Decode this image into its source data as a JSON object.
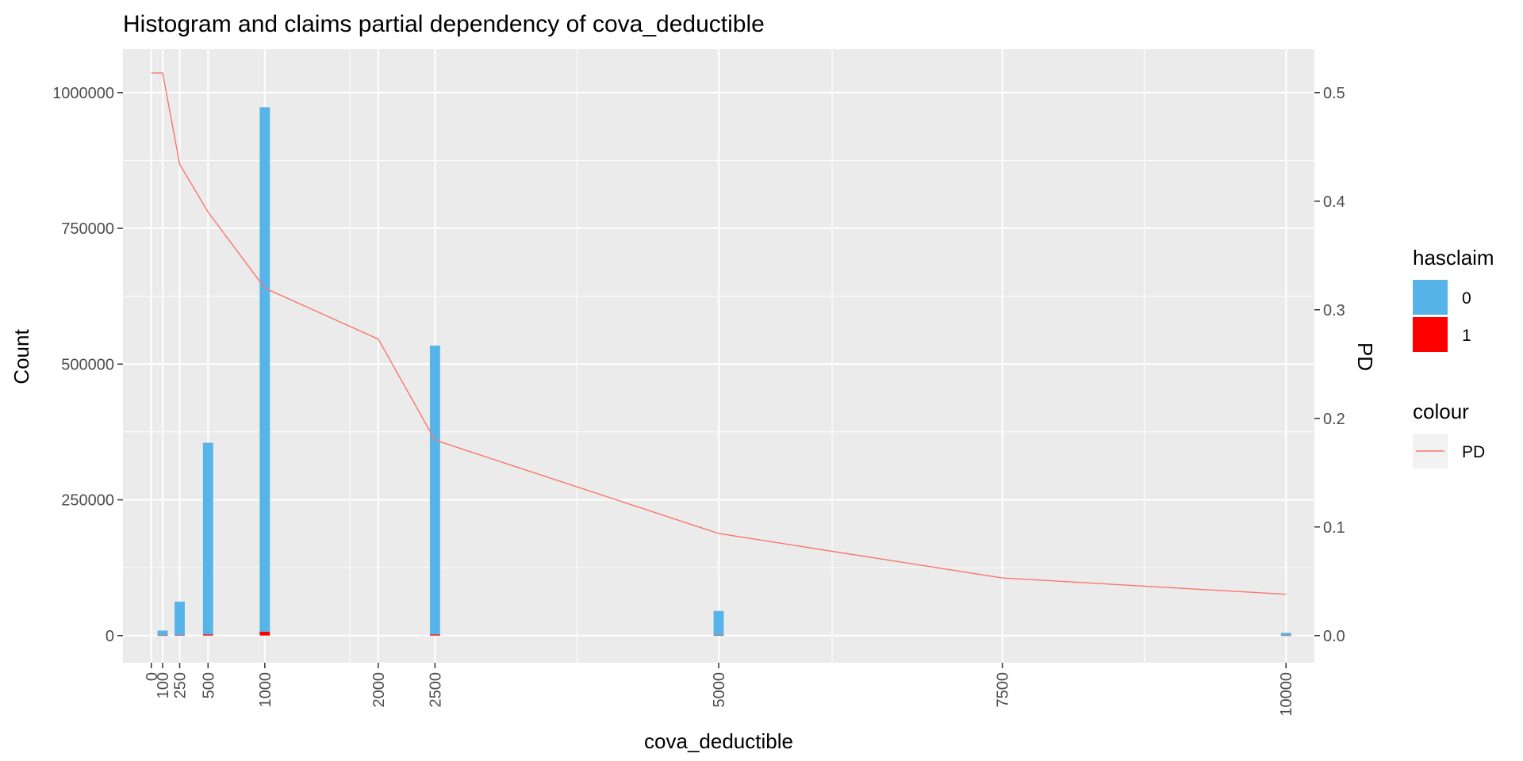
{
  "chart_data": {
    "type": "bar",
    "title": "Histogram and claims partial dependency of cova_deductible",
    "xlabel": "cova_deductible",
    "ylabel": "Count",
    "y2label": "PD",
    "xlim": [
      -250,
      10250
    ],
    "ylim": [
      -50000,
      1080000
    ],
    "y2lim": [
      -0.025,
      0.54
    ],
    "x_ticks": [
      0,
      100,
      250,
      500,
      1000,
      2000,
      2500,
      5000,
      7500,
      10000
    ],
    "x_ticks_display": [
      "0",
      "100",
      "250",
      "500",
      "1000",
      "2000",
      "2500",
      "5000",
      "7500",
      "10000"
    ],
    "x_minor_gridlines": [
      1750,
      3750,
      6000,
      8750
    ],
    "y_ticks": [
      0,
      250000,
      500000,
      750000,
      1000000
    ],
    "y_ticks_display": [
      "0",
      "250000",
      "500000",
      "750000",
      "1000000"
    ],
    "y2_ticks": [
      0.0,
      0.1,
      0.2,
      0.3,
      0.4,
      0.5
    ],
    "y2_ticks_display": [
      "0.0",
      "0.1",
      "0.2",
      "0.3",
      "0.4",
      "0.5"
    ],
    "grid": true,
    "legend_position": "right",
    "bar_width": 90,
    "bars": {
      "x": [
        100,
        250,
        500,
        1000,
        2500,
        5000,
        10000
      ],
      "series": [
        {
          "name": "0",
          "color": "#56B4E9",
          "values": [
            9000,
            62000,
            353000,
            966000,
            532000,
            45000,
            5000
          ]
        },
        {
          "name": "1",
          "color": "#FF0000",
          "values": [
            200,
            500,
            2000,
            7000,
            2000,
            300,
            50
          ]
        }
      ]
    },
    "line": {
      "name": "PD",
      "color": "#F8766D",
      "x": [
        0,
        100,
        250,
        500,
        1000,
        2000,
        2500,
        5000,
        7500,
        10000
      ],
      "values": [
        0.518,
        0.518,
        0.434,
        0.39,
        0.32,
        0.273,
        0.18,
        0.094,
        0.053,
        0.038
      ]
    },
    "legend": {
      "fill_title": "hasclaim",
      "fill_items": [
        {
          "label": "0",
          "color": "#56B4E9"
        },
        {
          "label": "1",
          "color": "#FF0000"
        }
      ],
      "colour_title": "colour",
      "colour_items": [
        {
          "label": "PD",
          "color": "#F8766D"
        }
      ]
    }
  }
}
